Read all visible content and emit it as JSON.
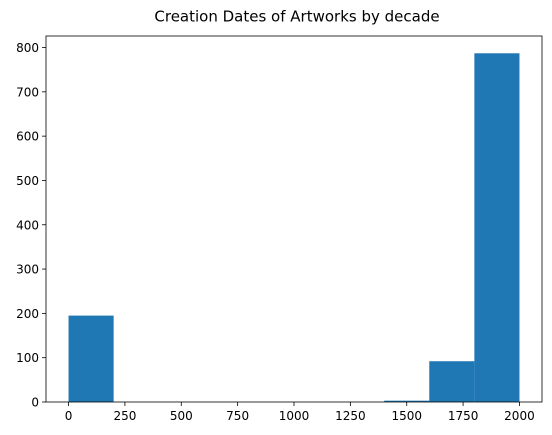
{
  "chart_data": {
    "type": "bar",
    "title": "Creation Dates of Artworks by decade",
    "xlabel": "",
    "ylabel": "",
    "bins": [
      {
        "start": 0,
        "end": 200,
        "count": 195
      },
      {
        "start": 200,
        "end": 400,
        "count": 0
      },
      {
        "start": 400,
        "end": 600,
        "count": 0
      },
      {
        "start": 600,
        "end": 800,
        "count": 0
      },
      {
        "start": 800,
        "end": 1000,
        "count": 0
      },
      {
        "start": 1000,
        "end": 1200,
        "count": 0
      },
      {
        "start": 1200,
        "end": 1400,
        "count": 0
      },
      {
        "start": 1400,
        "end": 1600,
        "count": 3
      },
      {
        "start": 1600,
        "end": 1800,
        "count": 92
      },
      {
        "start": 1800,
        "end": 2000,
        "count": 787
      }
    ],
    "xlim": [
      -100,
      2100
    ],
    "ylim": [
      0,
      826
    ],
    "xticks": [
      0,
      250,
      500,
      750,
      1000,
      1250,
      1500,
      1750,
      2000
    ],
    "yticks": [
      0,
      100,
      200,
      300,
      400,
      500,
      600,
      700,
      800
    ],
    "bar_color": "#1f77b4",
    "grid": false,
    "legend": "none"
  }
}
